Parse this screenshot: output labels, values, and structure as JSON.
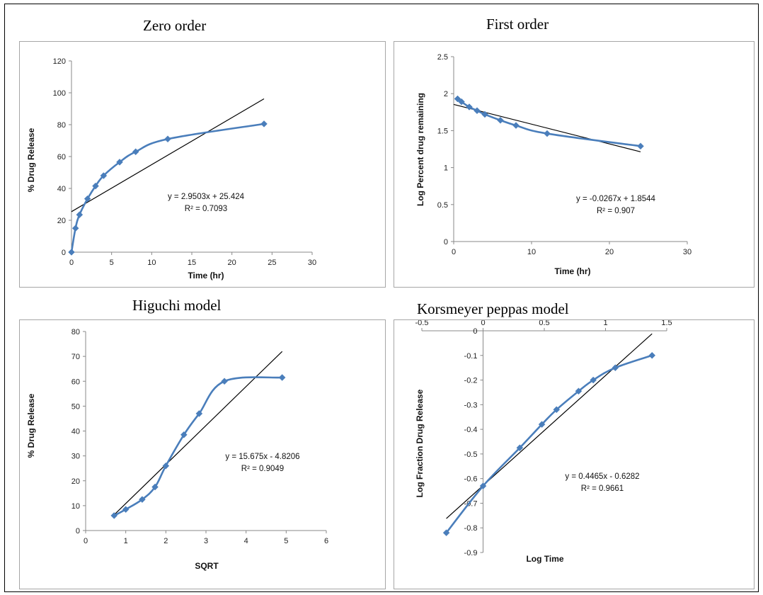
{
  "chart_data": [
    {
      "type": "scatter",
      "title": "Zero order",
      "xlabel": "Time (hr)",
      "ylabel": "% Drug Release",
      "xlim": [
        0,
        30
      ],
      "ylim": [
        0,
        120
      ],
      "xticks": [
        0,
        5,
        10,
        15,
        20,
        25,
        30
      ],
      "yticks": [
        0,
        20,
        40,
        60,
        80,
        100,
        120
      ],
      "xtick_labels": [
        "0",
        "5",
        "10",
        "15",
        "20",
        "25",
        "30"
      ],
      "ytick_labels": [
        "0",
        "20",
        "40",
        "60",
        "80",
        "100",
        "120"
      ],
      "grid": false,
      "series": [
        {
          "x": [
            0,
            0.5,
            1,
            2,
            3,
            4,
            6,
            8,
            12,
            24
          ],
          "y": [
            0,
            15,
            23.5,
            33.5,
            41.5,
            48,
            56.5,
            63,
            71,
            80.5
          ]
        }
      ],
      "trendline": {
        "slope": 2.9503,
        "intercept": 25.424,
        "x_range": [
          0,
          24
        ]
      },
      "equation": "y = 2.9503x + 25.424",
      "r2_label": "R² = 0.7093",
      "colors": {
        "series": "#4a7ebb",
        "trendline": "#000000"
      }
    },
    {
      "type": "scatter",
      "title": "First order",
      "xlabel": "Time (hr)",
      "ylabel": "Log Percent drug remaining",
      "xlim": [
        0,
        30
      ],
      "ylim": [
        0,
        2.5
      ],
      "xticks": [
        0,
        10,
        20,
        30
      ],
      "yticks": [
        0,
        0.5,
        1,
        1.5,
        2,
        2.5
      ],
      "xtick_labels": [
        "0",
        "10",
        "20",
        "30"
      ],
      "ytick_labels": [
        "0",
        "0.5",
        "1",
        "1.5",
        "2",
        "2.5"
      ],
      "grid": false,
      "series": [
        {
          "x": [
            0.5,
            1,
            2,
            3,
            4,
            6,
            8,
            12,
            24
          ],
          "y": [
            1.93,
            1.89,
            1.82,
            1.77,
            1.72,
            1.64,
            1.57,
            1.46,
            1.29
          ]
        }
      ],
      "trendline": {
        "slope": -0.0267,
        "intercept": 1.8544,
        "x_range": [
          0,
          24
        ]
      },
      "equation": "y = -0.0267x + 1.8544",
      "r2_label": "R² = 0.907",
      "colors": {
        "series": "#4a7ebb",
        "trendline": "#000000"
      }
    },
    {
      "type": "scatter",
      "title": "Higuchi model",
      "xlabel": "SQRT",
      "ylabel": "%  Drug Release",
      "xlim": [
        0,
        6
      ],
      "ylim": [
        0,
        80
      ],
      "xticks": [
        0,
        1,
        2,
        3,
        4,
        5,
        6
      ],
      "yticks": [
        0,
        10,
        20,
        30,
        40,
        50,
        60,
        70,
        80
      ],
      "xtick_labels": [
        "0",
        "1",
        "2",
        "3",
        "4",
        "5",
        "6"
      ],
      "ytick_labels": [
        "0",
        "10",
        "20",
        "30",
        "40",
        "50",
        "60",
        "70",
        "80"
      ],
      "grid": false,
      "series": [
        {
          "x": [
            0.71,
            1,
            1.41,
            1.73,
            2,
            2.45,
            2.83,
            3.46,
            4.9
          ],
          "y": [
            6,
            8.5,
            12.5,
            17.5,
            26,
            38.5,
            47,
            60,
            61.5
          ]
        }
      ],
      "trendline": {
        "slope": 15.675,
        "intercept": -4.8206,
        "x_range": [
          0.71,
          4.9
        ]
      },
      "equation": "y = 15.675x - 4.8206",
      "r2_label": "R² = 0.9049",
      "colors": {
        "series": "#4a7ebb",
        "trendline": "#000000"
      }
    },
    {
      "type": "scatter",
      "title": "Korsmeyer peppas  model",
      "xlabel": "Log Time",
      "ylabel": "Log Fraction Drug Release",
      "xlim": [
        -0.5,
        1.5
      ],
      "ylim": [
        -0.9,
        0
      ],
      "xticks": [
        -0.5,
        0,
        0.5,
        1,
        1.5
      ],
      "yticks": [
        -0.9,
        -0.8,
        -0.7,
        -0.6,
        -0.5,
        -0.4,
        -0.3,
        -0.2,
        -0.1,
        0
      ],
      "xtick_labels": [
        "-0.5",
        "0",
        "0.5",
        "1",
        "1.5"
      ],
      "ytick_labels": [
        "-0.9",
        "-0.8",
        "-0.7",
        "-0.6",
        "-0.5",
        "-0.4",
        "-0.3",
        "-0.2",
        "-0.1",
        "0"
      ],
      "grid": false,
      "series": [
        {
          "x": [
            -0.3,
            0,
            0.3,
            0.48,
            0.6,
            0.78,
            0.9,
            1.08,
            1.38
          ],
          "y": [
            -0.82,
            -0.63,
            -0.475,
            -0.38,
            -0.32,
            -0.245,
            -0.2,
            -0.15,
            -0.1
          ]
        }
      ],
      "trendline": {
        "slope": 0.4465,
        "intercept": -0.6282,
        "x_range": [
          -0.3,
          1.38
        ]
      },
      "equation": "y = 0.4465x - 0.6282",
      "r2_label": "R² = 0.9661",
      "colors": {
        "series": "#4a7ebb",
        "trendline": "#000000"
      }
    }
  ]
}
